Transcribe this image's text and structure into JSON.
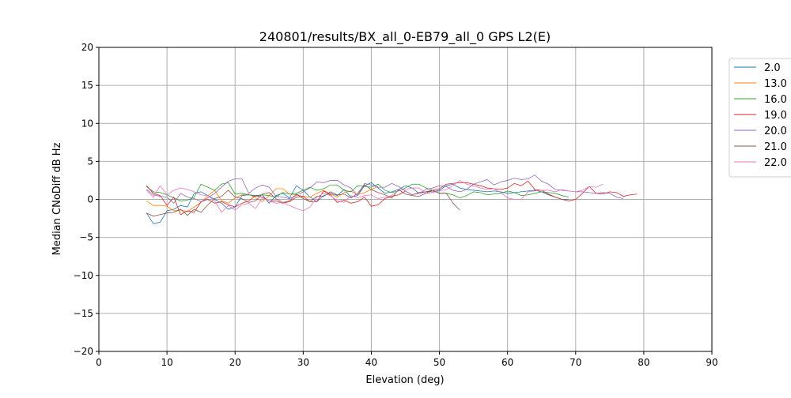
{
  "chart_data": {
    "type": "line",
    "title": "240801/results/BX_all_0-EB79_all_0 GPS L2(E)",
    "xlabel": "Elevation (deg)",
    "ylabel": "Median CNoDiff dB Hz",
    "xlim": [
      0,
      90
    ],
    "ylim": [
      -20,
      20
    ],
    "xticks": [
      0,
      10,
      20,
      30,
      40,
      50,
      60,
      70,
      80,
      90
    ],
    "yticks": [
      -20,
      -15,
      -10,
      -5,
      0,
      5,
      10,
      15,
      20
    ],
    "grid": true,
    "legend_position": "outside-right-top",
    "series": [
      {
        "name": "2.0",
        "color": "#1f77b4",
        "x0": 7,
        "values": [
          -1.8,
          -3.2,
          -3,
          -1.5,
          -1.3,
          -0.8,
          -1,
          0.8,
          1,
          0.5,
          0,
          -0.5,
          -1.3,
          -1,
          0.5,
          0.6,
          0.5,
          0.6,
          -0.5,
          0.5,
          0.8,
          0.2,
          1.8,
          1.2,
          0.3,
          -0.3,
          0.5,
          0.8,
          0.5,
          1.3,
          0.3,
          0.5,
          1.8,
          2.2,
          1.5,
          0.8,
          1,
          1.3,
          1.8,
          1.5,
          0.8,
          1,
          1,
          1.2,
          1.8,
          2,
          1.5,
          1.3,
          1.2,
          1.1,
          1,
          1.1,
          1,
          0.8,
          0.9,
          1,
          1.1,
          1.2,
          1,
          0.6,
          0.3,
          0,
          0
        ]
      },
      {
        "name": "13.0",
        "color": "#ff7f0e",
        "x0": 7,
        "values": [
          -0.2,
          -0.8,
          -0.8,
          -0.9,
          -1.5,
          -1.4,
          -1.6,
          -1,
          -0.4,
          0.5,
          1.2,
          -0.2,
          -0.5,
          0.2,
          0.6,
          0.7,
          0.2,
          -0.3,
          0.5,
          1.4,
          1.4,
          0.7,
          0.6,
          0.4,
          0.3,
          0.8,
          1.2,
          0.7,
          0.3,
          0.9,
          1.1,
          0.6,
          0.9,
          1.3,
          1.7
        ]
      },
      {
        "name": "16.0",
        "color": "#2ca02c",
        "x0": 7,
        "values": [
          1.7,
          1,
          0.9,
          0.6,
          0.2,
          -0.2,
          -0.1,
          0.3,
          2,
          1.6,
          1.2,
          2,
          2.2,
          0.7,
          0.8,
          0.6,
          0.4,
          0.6,
          0.5,
          0.3,
          0.9,
          0.7,
          0.8,
          1.2,
          1.6,
          1.2,
          1.4,
          1.9,
          1.9,
          1.2,
          1,
          1.8,
          1.7,
          1.6,
          2,
          1.2,
          0.9,
          1.1,
          1.5,
          2,
          2,
          1.5,
          1.2,
          0.8,
          0.8,
          0.6,
          0.2,
          0.5,
          1,
          0.9,
          0.6,
          0.7,
          0.8,
          1.1,
          0.9,
          0.5,
          0.6,
          0.8,
          1,
          0.9,
          0.8,
          0.5,
          0.3
        ]
      },
      {
        "name": "19.0",
        "color": "#d62728",
        "x0": 7,
        "values": [
          1.8,
          0.8,
          0.5,
          -0.8,
          0.3,
          -2,
          -1.5,
          -1.7,
          -0.3,
          0,
          -0.5,
          -0.3,
          -0.7,
          -1,
          -0.5,
          -0.2,
          0.5,
          0.3,
          -0.2,
          -0.2,
          -0.5,
          -0.3,
          0.3,
          0.4,
          -0.3,
          -0.3,
          1.1,
          0.6,
          -0.4,
          -0.1,
          -0.5,
          -0.3,
          0.3,
          -0.9,
          -0.7,
          0.1,
          0.4,
          0.6,
          1.1,
          0.6,
          0.9,
          1,
          1.2,
          1.4,
          2,
          2.1,
          2.2,
          2.2,
          2,
          1.8,
          1.5,
          1.4,
          1.3,
          1.5,
          2.1,
          1.8,
          2.4,
          1.3,
          1.2,
          0.7,
          0.3,
          0,
          -0.2,
          0,
          0.8,
          1.7,
          0.8,
          0.7,
          1,
          0.9,
          0.4,
          0.6,
          0.7
        ]
      },
      {
        "name": "20.0",
        "color": "#9467bd",
        "x0": 7,
        "values": [
          1.3,
          0.6,
          0.4,
          0.3,
          -0.5,
          0.8,
          0.3,
          0.1,
          -0.3,
          0.2,
          0.8,
          1.6,
          2.4,
          2.7,
          2.7,
          0.8,
          1.5,
          1.9,
          1.6,
          0.4,
          0.3,
          0.1,
          0.5,
          1,
          1.5,
          2.3,
          2.2,
          2.5,
          2.5,
          1.9,
          1.5,
          0.5,
          2.1,
          1.9,
          1.6,
          1.6,
          2.1,
          1.7,
          1.1,
          0.6,
          0.8,
          1.3,
          1.5,
          1.8,
          1.7,
          1.2,
          1,
          1.3,
          2,
          2.3,
          2.6,
          1.9,
          2.3,
          2.5,
          2.8,
          2.6,
          2.7,
          3.2,
          2.4,
          2,
          1.3,
          1.2,
          1.1,
          1,
          1,
          0.9,
          0.8,
          0.9,
          0.8,
          0.3,
          0.1
        ]
      },
      {
        "name": "21.0",
        "color": "#8c564b",
        "x0": 7,
        "values": [
          -1.8,
          -2.2,
          -2,
          -1.8,
          -1.7,
          -1.3,
          -2.1,
          -1.3,
          -1.7,
          -0.7,
          0.1,
          0.4,
          1.2,
          0.3,
          0.1,
          -0.4,
          -0.2,
          0.7,
          0.9,
          0.1,
          -0.4,
          -0.2,
          0.7,
          0.1,
          -0.3,
          0.4,
          0.4,
          1,
          0.6,
          0.7,
          0.2,
          0.8,
          1.9,
          1.3,
          0.9,
          0.6,
          0.2,
          1.3,
          0.7,
          0.5,
          0.4,
          0.8,
          1.2,
          0.8,
          0.8,
          -0.5,
          -1.4
        ]
      },
      {
        "name": "22.0",
        "color": "#e377c2",
        "x0": 7,
        "values": [
          1.2,
          0.3,
          1.8,
          0.6,
          1.2,
          1.5,
          1.3,
          1,
          0.6,
          0.5,
          -0.2,
          -1.7,
          -0.8,
          -1.4,
          -0.7,
          -0.5,
          -1.2,
          0.2,
          -0.2,
          -0.5,
          -0.4,
          -0.8,
          -1.2,
          -1.5,
          -1,
          0.3,
          0.8,
          0.5,
          -0.2,
          -0.4,
          0.5,
          0.2,
          0.5,
          0.6,
          0.1,
          0.3,
          0.5,
          1.2,
          1.3,
          1.5,
          1.5,
          0.8,
          0.9,
          1.1,
          1.3,
          1.8,
          2.5,
          2,
          1.8,
          1.5,
          1.3,
          1.4,
          0.9,
          0.2,
          0,
          0,
          1,
          1.1,
          1.2,
          1.2,
          1,
          1.3,
          1.1,
          1,
          1.2,
          1.7,
          1.6,
          2
        ]
      }
    ]
  }
}
